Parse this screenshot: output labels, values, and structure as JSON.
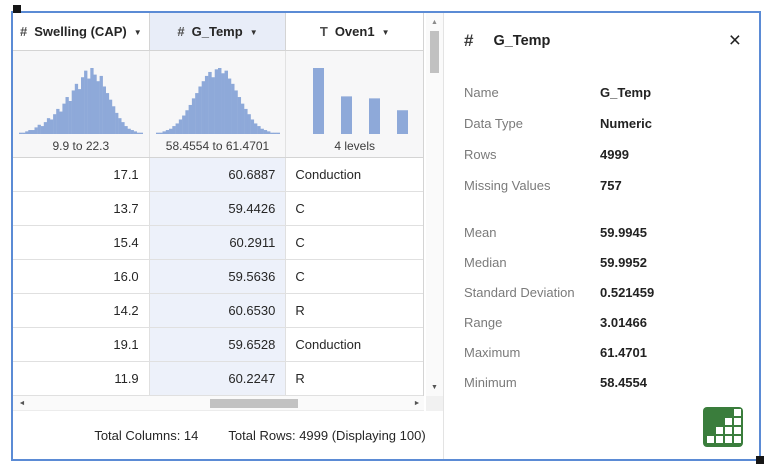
{
  "colors": {
    "window_border": "#5b8bd5",
    "selected_header_bg": "#e8edf8",
    "selected_column_bg": "#edf1fa",
    "histogram_bar": "#8ea9d9",
    "summary_button_green": "#3a7d3c"
  },
  "icons": {
    "dropdown": "▼",
    "close": "×",
    "scroll_up": "▲",
    "scroll_down": "▼",
    "scroll_left": "◄",
    "scroll_right": "►"
  },
  "table": {
    "columns": [
      {
        "type_icon": "#",
        "type": "numeric",
        "label": "Swelling (CAP)",
        "range_label": "9.9 to 22.3",
        "selected": false
      },
      {
        "type_icon": "#",
        "type": "numeric",
        "label": "G_Temp",
        "range_label": "58.4554 to 61.4701",
        "selected": true
      },
      {
        "type_icon": "T",
        "type": "text",
        "label": "Oven1",
        "range_label": "4 levels",
        "selected": false
      }
    ],
    "rows": [
      {
        "swelling": "17.1",
        "g_temp": "60.6887",
        "oven1": "Conduction"
      },
      {
        "swelling": "13.7",
        "g_temp": "59.4426",
        "oven1": "C"
      },
      {
        "swelling": "15.4",
        "g_temp": "60.2911",
        "oven1": "C"
      },
      {
        "swelling": "16.0",
        "g_temp": "59.5636",
        "oven1": "C"
      },
      {
        "swelling": "14.2",
        "g_temp": "60.6530",
        "oven1": "R"
      },
      {
        "swelling": "19.1",
        "g_temp": "59.6528",
        "oven1": "Conduction"
      },
      {
        "swelling": "11.9",
        "g_temp": "60.2247",
        "oven1": "R"
      }
    ],
    "status": {
      "total_columns_label": "Total Columns: 14",
      "total_rows_label": "Total Rows: 4999 (Displaying 100)"
    }
  },
  "chart_data": [
    {
      "type": "histogram",
      "column": "Swelling (CAP)",
      "title": "Swelling (CAP) distribution",
      "x_range_label": "9.9 to 22.3",
      "xlim": [
        9.9,
        22.3
      ],
      "bins": [
        1,
        1,
        2,
        3,
        3,
        5,
        7,
        6,
        9,
        12,
        11,
        15,
        19,
        17,
        23,
        28,
        25,
        33,
        38,
        34,
        43,
        48,
        42,
        50,
        45,
        40,
        44,
        36,
        31,
        26,
        21,
        16,
        12,
        9,
        6,
        4,
        3,
        2,
        1,
        1
      ],
      "color": "#8ea9d9"
    },
    {
      "type": "histogram",
      "column": "G_Temp",
      "title": "G_Temp distribution",
      "x_range_label": "58.4554 to 61.4701",
      "xlim": [
        58.4554,
        61.4701
      ],
      "bins": [
        1,
        1,
        2,
        3,
        4,
        6,
        8,
        11,
        14,
        18,
        22,
        27,
        31,
        36,
        40,
        44,
        47,
        43,
        49,
        50,
        46,
        48,
        42,
        38,
        33,
        28,
        23,
        19,
        15,
        11,
        8,
        6,
        4,
        3,
        2,
        1,
        1,
        1
      ],
      "color": "#8ea9d9"
    },
    {
      "type": "bar",
      "column": "Oven1",
      "title": "Oven1 levels",
      "levels_label": "4 levels",
      "levels": 4,
      "values": [
        100,
        57,
        54,
        36
      ],
      "color": "#8ea9d9"
    }
  ],
  "panel": {
    "type_icon": "#",
    "title": "G_Temp",
    "fields": [
      {
        "label": "Name",
        "value": "G_Temp"
      },
      {
        "label": "Data Type",
        "value": "Numeric"
      },
      {
        "label": "Rows",
        "value": "4999"
      },
      {
        "label": "Missing Values",
        "value": "757"
      }
    ],
    "stats": [
      {
        "label": "Mean",
        "value": "59.9945"
      },
      {
        "label": "Median",
        "value": "59.9952"
      },
      {
        "label": "Standard Deviation",
        "value": "0.521459"
      },
      {
        "label": "Range",
        "value": "3.01466"
      },
      {
        "label": "Maximum",
        "value": "61.4701"
      },
      {
        "label": "Minimum",
        "value": "58.4554"
      }
    ]
  }
}
